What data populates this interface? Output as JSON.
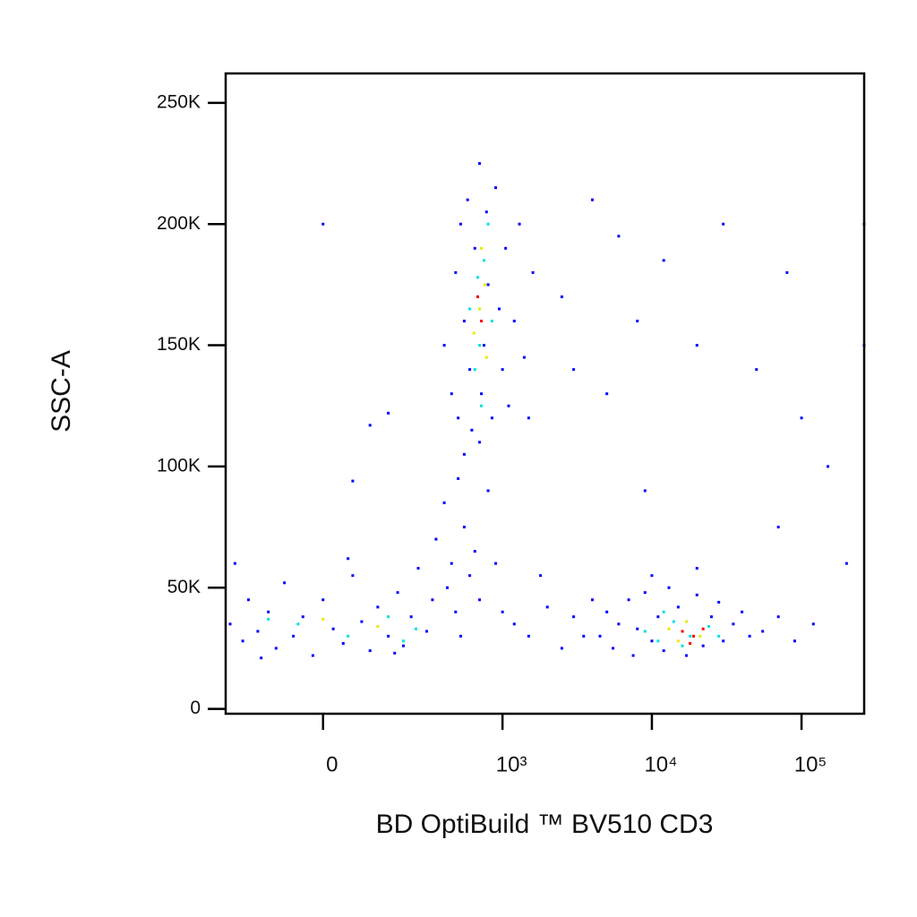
{
  "chart_data": {
    "type": "scatter",
    "xlabel": "BD OptiBuild ™ BV510 CD3",
    "ylabel": "SSC-A",
    "xscale": "biexponential",
    "xlim": [
      -270,
      262144
    ],
    "ylim": [
      -2000,
      262144
    ],
    "xticks": [
      0,
      {
        "value": 1000,
        "label": "10³"
      },
      {
        "value": 10000,
        "label": "10⁴"
      },
      {
        "value": 100000,
        "label": "10⁵"
      }
    ],
    "yticks": [
      0,
      {
        "value": 50000,
        "label": "50K"
      },
      {
        "value": 100000,
        "label": "100K"
      },
      {
        "value": 150000,
        "label": "150K"
      },
      {
        "value": 200000,
        "label": "200K"
      },
      {
        "value": 250000,
        "label": "250K"
      }
    ],
    "series": [
      {
        "color": "#0000ff",
        "x": [
          -250,
          -200,
          -180,
          -150,
          -120,
          -100,
          -80,
          -60,
          -40,
          -20,
          0,
          20,
          40,
          60,
          80,
          100,
          120,
          150,
          180,
          200,
          230,
          260,
          300,
          330,
          -230,
          -140,
          50,
          170,
          350,
          400,
          450,
          500,
          550,
          600,
          420,
          480,
          520,
          650,
          700,
          800,
          900,
          1000,
          1200,
          1500,
          2000,
          2500,
          3000,
          3500,
          4000,
          1800,
          400,
          450,
          480,
          500,
          520,
          550,
          580,
          600,
          620,
          650,
          680,
          700,
          720,
          750,
          780,
          800,
          850,
          900,
          950,
          1000,
          1050,
          1100,
          1200,
          1300,
          1400,
          1600,
          550,
          700,
          1500,
          0,
          100,
          150,
          60,
          2500,
          3000,
          4000,
          5000,
          6000,
          8000,
          12000,
          20000,
          30000,
          50000,
          80000,
          100000,
          150000,
          70000,
          9000,
          200000,
          262000,
          262000,
          4500,
          5000,
          5500,
          6000,
          7000,
          7500,
          8000,
          9000,
          10000,
          11000,
          12000,
          13000,
          15000,
          17000,
          20000,
          22000,
          25000,
          28000,
          30000,
          35000,
          40000,
          45000,
          55000,
          70000,
          90000,
          120000,
          10000,
          20000
        ],
        "values": [
          35000,
          28000,
          45000,
          32000,
          40000,
          25000,
          52000,
          30000,
          38000,
          22000,
          45000,
          33000,
          27000,
          55000,
          36000,
          24000,
          42000,
          30000,
          48000,
          26000,
          38000,
          58000,
          32000,
          45000,
          60000,
          21000,
          62000,
          23000,
          70000,
          85000,
          60000,
          95000,
          75000,
          55000,
          50000,
          40000,
          30000,
          65000,
          45000,
          90000,
          60000,
          40000,
          35000,
          30000,
          42000,
          25000,
          38000,
          30000,
          45000,
          55000,
          150000,
          130000,
          180000,
          120000,
          200000,
          160000,
          210000,
          140000,
          115000,
          190000,
          170000,
          225000,
          130000,
          150000,
          205000,
          175000,
          120000,
          215000,
          165000,
          140000,
          190000,
          125000,
          160000,
          200000,
          145000,
          180000,
          105000,
          110000,
          120000,
          200000,
          117000,
          122000,
          94000,
          170000,
          140000,
          210000,
          130000,
          195000,
          160000,
          185000,
          150000,
          200000,
          140000,
          180000,
          120000,
          100000,
          75000,
          90000,
          60000,
          200000,
          150000,
          30000,
          40000,
          25000,
          35000,
          45000,
          22000,
          33000,
          48000,
          28000,
          38000,
          24000,
          50000,
          42000,
          22000,
          47000,
          26000,
          38000,
          44000,
          28000,
          35000,
          40000,
          30000,
          32000,
          38000,
          28000,
          35000,
          55000,
          58000
        ]
      },
      {
        "color": "#00e0e0",
        "x": [
          -50,
          50,
          150,
          250,
          -120,
          200,
          600,
          700,
          750,
          650,
          800,
          720,
          850,
          680,
          9000,
          11000,
          14000,
          18000,
          24000,
          16000,
          12000,
          28000
        ],
        "values": [
          35000,
          30000,
          38000,
          33000,
          37000,
          28000,
          165000,
          150000,
          185000,
          140000,
          200000,
          125000,
          160000,
          178000,
          32000,
          28000,
          36000,
          30000,
          34000,
          26000,
          40000,
          30000
        ]
      },
      {
        "color": "#e8e800",
        "x": [
          0,
          120,
          700,
          760,
          640,
          780,
          720,
          13000,
          17000,
          21000,
          15000
        ],
        "values": [
          37000,
          34000,
          165000,
          175000,
          155000,
          145000,
          190000,
          33000,
          36000,
          30000,
          28000
        ]
      },
      {
        "color": "#ff0000",
        "x": [
          720,
          680,
          16000,
          19000,
          22000,
          18000
        ],
        "values": [
          160000,
          170000,
          32000,
          30000,
          33000,
          27000
        ]
      }
    ]
  }
}
